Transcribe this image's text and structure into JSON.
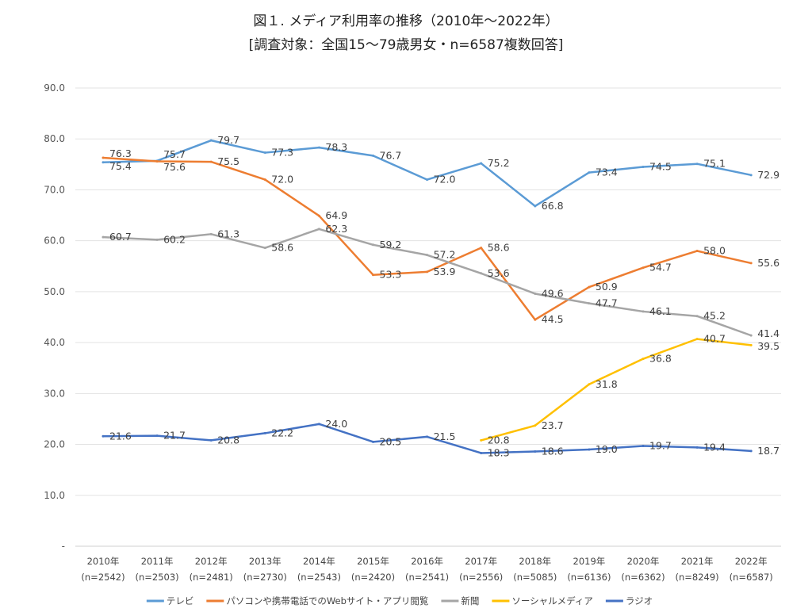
{
  "chart_data": {
    "type": "line",
    "title": "図１. メディア利用率の推移（2010年～2022年）",
    "subtitle": "[調査対象：全国15～79歳男女・n=6587複数回答]",
    "categories": [
      "2010年",
      "2011年",
      "2012年",
      "2013年",
      "2014年",
      "2015年",
      "2016年",
      "2017年",
      "2018年",
      "2019年",
      "2020年",
      "2021年",
      "2022年"
    ],
    "category_sub": [
      "(n=2542)",
      "(n=2503)",
      "(n=2481)",
      "(n=2730)",
      "(n=2543)",
      "(n=2420)",
      "(n=2541)",
      "(n=2556)",
      "(n=5085)",
      "(n=6136)",
      "(n=6362)",
      "(n=8249)",
      "(n=6587)"
    ],
    "ylim": [
      0,
      90
    ],
    "yticks": [
      "-",
      "10.0",
      "20.0",
      "30.0",
      "40.0",
      "50.0",
      "60.0",
      "70.0",
      "80.0",
      "90.0"
    ],
    "grid": true,
    "legend_position": "bottom",
    "series": [
      {
        "name": "テレビ",
        "color": "#5B9BD5",
        "values": [
          75.4,
          75.7,
          79.7,
          77.3,
          78.3,
          76.7,
          72.0,
          75.2,
          66.8,
          73.4,
          74.5,
          75.1,
          72.9
        ]
      },
      {
        "name": "パソコンや携帯電話でのWebサイト・アプリ閲覧",
        "color": "#ED7D31",
        "values": [
          76.3,
          75.6,
          75.5,
          72.0,
          64.9,
          53.3,
          53.9,
          58.6,
          44.5,
          50.9,
          54.7,
          58.0,
          55.6
        ]
      },
      {
        "name": "新聞",
        "color": "#A5A5A5",
        "values": [
          60.7,
          60.2,
          61.3,
          58.6,
          62.3,
          59.2,
          57.2,
          53.6,
          49.6,
          47.7,
          46.1,
          45.2,
          41.4
        ]
      },
      {
        "name": "ソーシャルメディア",
        "color": "#FFC000",
        "values": [
          null,
          null,
          null,
          null,
          null,
          null,
          null,
          20.8,
          23.7,
          31.8,
          36.8,
          40.7,
          39.5
        ]
      },
      {
        "name": "ラジオ",
        "color": "#4472C4",
        "values": [
          21.6,
          21.7,
          20.8,
          22.2,
          24.0,
          20.5,
          21.5,
          18.3,
          18.6,
          19.0,
          19.7,
          19.4,
          18.7
        ]
      }
    ]
  }
}
